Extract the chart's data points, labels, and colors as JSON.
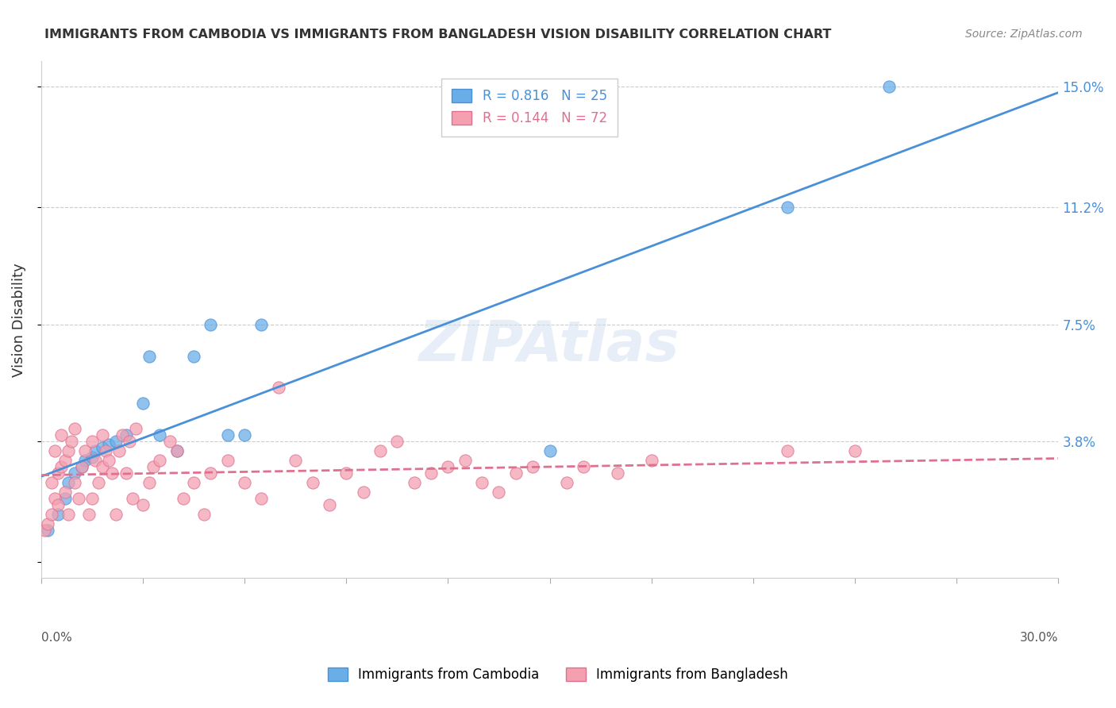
{
  "title": "IMMIGRANTS FROM CAMBODIA VS IMMIGRANTS FROM BANGLADESH VISION DISABILITY CORRELATION CHART",
  "source": "Source: ZipAtlas.com",
  "ylabel": "Vision Disability",
  "yticks": [
    0.0,
    0.038,
    0.075,
    0.112,
    0.15
  ],
  "ytick_labels": [
    "",
    "3.8%",
    "7.5%",
    "11.2%",
    "15.0%"
  ],
  "xlim": [
    0.0,
    0.3
  ],
  "ylim": [
    -0.005,
    0.158
  ],
  "watermark": "ZIPAtlas",
  "cambodia_R": 0.816,
  "cambodia_N": 25,
  "cambodia_color": "#6aaee8",
  "cambodia_line_color": "#4a90d9",
  "bangladesh_R": 0.144,
  "bangladesh_N": 72,
  "bangladesh_color": "#f4a0b0",
  "bangladesh_line_color": "#e07090",
  "cambodia_x": [
    0.002,
    0.005,
    0.007,
    0.008,
    0.01,
    0.012,
    0.013,
    0.015,
    0.016,
    0.018,
    0.02,
    0.022,
    0.025,
    0.03,
    0.032,
    0.035,
    0.04,
    0.045,
    0.05,
    0.055,
    0.06,
    0.065,
    0.15,
    0.22,
    0.25
  ],
  "cambodia_y": [
    0.01,
    0.015,
    0.02,
    0.025,
    0.028,
    0.03,
    0.032,
    0.033,
    0.035,
    0.036,
    0.037,
    0.038,
    0.04,
    0.05,
    0.065,
    0.04,
    0.035,
    0.065,
    0.075,
    0.04,
    0.04,
    0.075,
    0.035,
    0.112,
    0.15
  ],
  "bangladesh_x": [
    0.001,
    0.002,
    0.003,
    0.003,
    0.004,
    0.004,
    0.005,
    0.005,
    0.006,
    0.006,
    0.007,
    0.007,
    0.008,
    0.008,
    0.009,
    0.01,
    0.01,
    0.011,
    0.012,
    0.013,
    0.014,
    0.015,
    0.015,
    0.016,
    0.017,
    0.018,
    0.018,
    0.019,
    0.02,
    0.021,
    0.022,
    0.023,
    0.024,
    0.025,
    0.026,
    0.027,
    0.028,
    0.03,
    0.032,
    0.033,
    0.035,
    0.038,
    0.04,
    0.042,
    0.045,
    0.048,
    0.05,
    0.055,
    0.06,
    0.065,
    0.07,
    0.075,
    0.08,
    0.085,
    0.09,
    0.095,
    0.1,
    0.105,
    0.11,
    0.115,
    0.12,
    0.125,
    0.13,
    0.135,
    0.14,
    0.145,
    0.155,
    0.16,
    0.17,
    0.18,
    0.22,
    0.24
  ],
  "bangladesh_y": [
    0.01,
    0.012,
    0.015,
    0.025,
    0.02,
    0.035,
    0.018,
    0.028,
    0.03,
    0.04,
    0.022,
    0.032,
    0.035,
    0.015,
    0.038,
    0.025,
    0.042,
    0.02,
    0.03,
    0.035,
    0.015,
    0.038,
    0.02,
    0.032,
    0.025,
    0.03,
    0.04,
    0.035,
    0.032,
    0.028,
    0.015,
    0.035,
    0.04,
    0.028,
    0.038,
    0.02,
    0.042,
    0.018,
    0.025,
    0.03,
    0.032,
    0.038,
    0.035,
    0.02,
    0.025,
    0.015,
    0.028,
    0.032,
    0.025,
    0.02,
    0.055,
    0.032,
    0.025,
    0.018,
    0.028,
    0.022,
    0.035,
    0.038,
    0.025,
    0.028,
    0.03,
    0.032,
    0.025,
    0.022,
    0.028,
    0.03,
    0.025,
    0.03,
    0.028,
    0.032,
    0.035,
    0.035
  ]
}
